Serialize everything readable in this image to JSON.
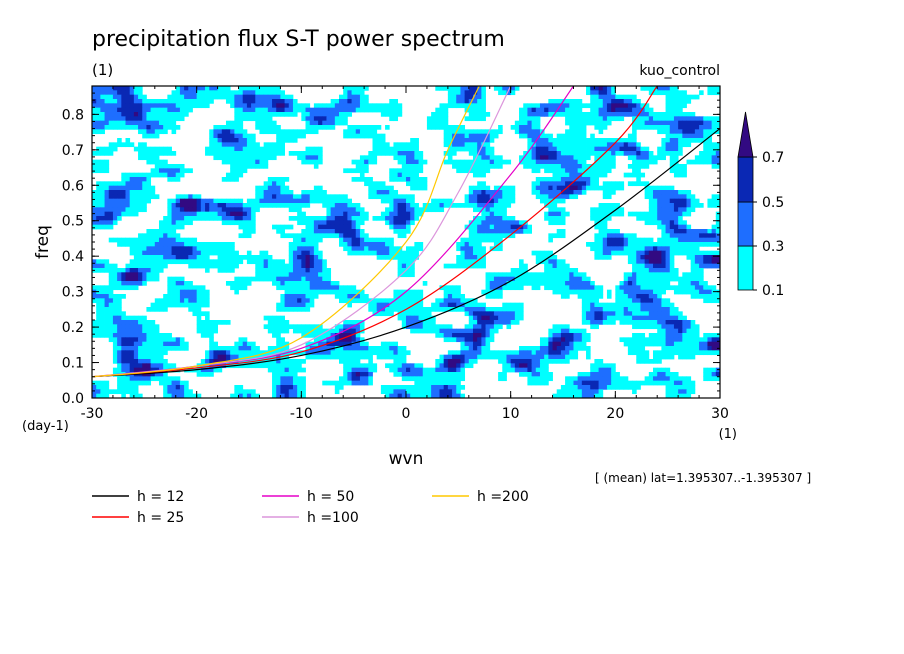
{
  "chart_data": {
    "type": "heatmap",
    "title": "precipitation flux S-T power spectrum",
    "title_units": "(1)",
    "case_label": "kuo_control",
    "xlabel": "wvn",
    "x_units": "(1)",
    "ylabel": "freq",
    "y_units": "(day-1)",
    "xlim": [
      -30,
      30
    ],
    "ylim": [
      0.0,
      0.88
    ],
    "x_ticks": [
      -30,
      -20,
      -10,
      0,
      10,
      20,
      30
    ],
    "x_tick_labels": [
      "-30",
      "-20",
      "-10",
      "0",
      "10",
      "20",
      "30"
    ],
    "y_ticks": [
      0.0,
      0.1,
      0.2,
      0.3,
      0.4,
      0.5,
      0.6,
      0.7,
      0.8
    ],
    "y_tick_labels": [
      "0.0",
      "0.1",
      "0.2",
      "0.3",
      "0.4",
      "0.5",
      "0.6",
      "0.7",
      "0.8"
    ],
    "contour_levels": [
      0.1,
      0.3,
      0.5,
      0.7
    ],
    "contour_level_labels": [
      "0.1",
      "0.3",
      "0.5",
      "0.7"
    ],
    "contour_colors": [
      "#00ffff",
      "#1e6eff",
      "#0a28b4",
      "#320a82"
    ],
    "colorbar_extend": "max",
    "footnote": "[ (mean) lat=1.395307..-1.395307 ]",
    "series": [
      {
        "name": "h = 12",
        "color": "#000000",
        "x": [
          -30,
          -20,
          -10,
          0,
          10,
          20,
          30
        ],
        "y": [
          0.06,
          0.08,
          0.12,
          0.2,
          0.33,
          0.53,
          0.76
        ]
      },
      {
        "name": "h = 25",
        "color": "#ff0000",
        "x": [
          -30,
          -20,
          -10,
          0,
          10,
          20,
          24
        ],
        "y": [
          0.06,
          0.085,
          0.13,
          0.25,
          0.46,
          0.72,
          0.88
        ]
      },
      {
        "name": "h = 50",
        "color": "#e600c8",
        "x": [
          -30,
          -20,
          -10,
          0,
          10,
          16
        ],
        "y": [
          0.06,
          0.09,
          0.14,
          0.3,
          0.63,
          0.88
        ]
      },
      {
        "name": "h =100",
        "color": "#dc96dc",
        "x": [
          -30,
          -20,
          -10,
          0,
          5,
          10
        ],
        "y": [
          0.06,
          0.09,
          0.15,
          0.36,
          0.58,
          0.88
        ]
      },
      {
        "name": "h =200",
        "color": "#ffc800",
        "x": [
          -30,
          -20,
          -10,
          0,
          4,
          7
        ],
        "y": [
          0.06,
          0.09,
          0.17,
          0.44,
          0.7,
          0.88
        ]
      }
    ]
  }
}
